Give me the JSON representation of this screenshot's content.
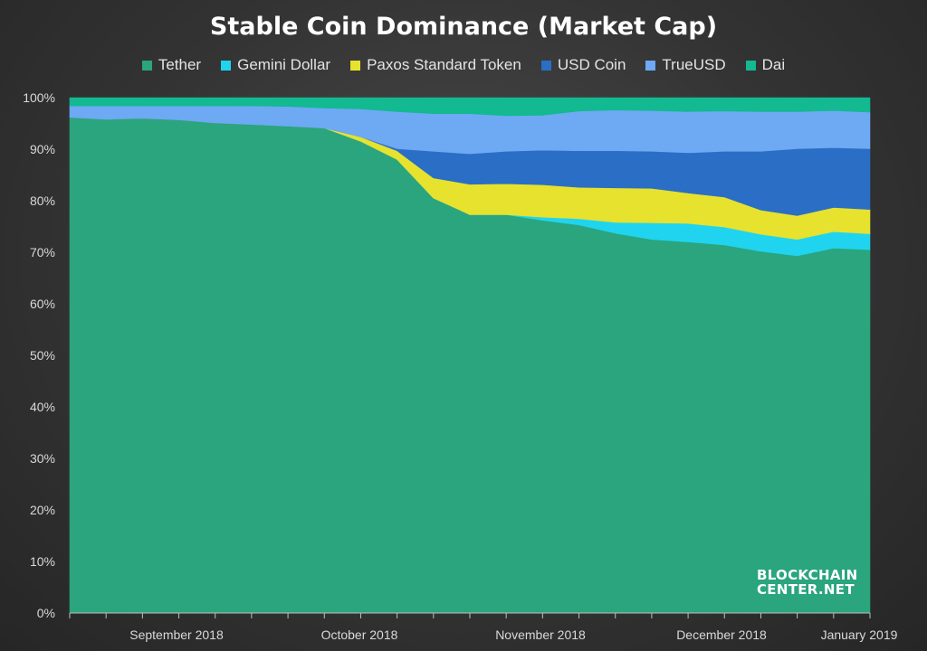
{
  "chart_data": {
    "type": "area",
    "stacked": true,
    "normalized_percent": true,
    "title": "Stable Coin Dominance (Market Cap)",
    "xlabel": "",
    "ylabel": "",
    "ylim": [
      0,
      100
    ],
    "yticks": [
      "0%",
      "10%",
      "20%",
      "30%",
      "40%",
      "50%",
      "60%",
      "70%",
      "80%",
      "90%",
      "100%"
    ],
    "xticks": [
      "September 2018",
      "October 2018",
      "November 2018",
      "December 2018",
      "January 2019"
    ],
    "legend_position": "top",
    "grid": false,
    "x": [
      "2018-08-19",
      "2018-08-26",
      "2018-09-02",
      "2018-09-09",
      "2018-09-16",
      "2018-09-23",
      "2018-09-30",
      "2018-10-07",
      "2018-10-14",
      "2018-10-21",
      "2018-10-28",
      "2018-11-04",
      "2018-11-11",
      "2018-11-18",
      "2018-11-25",
      "2018-12-02",
      "2018-12-09",
      "2018-12-16",
      "2018-12-23",
      "2018-12-30",
      "2019-01-06",
      "2019-01-13",
      "2019-01-20"
    ],
    "series": [
      {
        "name": "Tether",
        "color": "#2aa57d",
        "values": [
          96.2,
          95.8,
          96.0,
          95.7,
          95.1,
          94.8,
          94.5,
          94.1,
          91.5,
          88.0,
          80.5,
          77.3,
          77.3,
          76.2,
          75.3,
          73.7,
          72.5,
          72.0,
          71.4,
          70.2,
          69.3,
          70.8,
          70.5
        ]
      },
      {
        "name": "Gemini Dollar",
        "color": "#20d4f0",
        "values": [
          0,
          0,
          0,
          0,
          0,
          0,
          0,
          0,
          0,
          0,
          0,
          0,
          0,
          0.6,
          1.2,
          2.1,
          3.2,
          3.6,
          3.5,
          3.3,
          3.2,
          3.2,
          3.1
        ]
      },
      {
        "name": "Paxos Standard Token",
        "color": "#e6e22e",
        "values": [
          0,
          0,
          0,
          0,
          0,
          0,
          0,
          0,
          0.9,
          1.7,
          3.9,
          5.9,
          6.0,
          6.3,
          6.1,
          6.7,
          6.7,
          5.9,
          5.8,
          4.7,
          4.6,
          4.7,
          4.7
        ]
      },
      {
        "name": "USD Coin",
        "color": "#2a6fc5",
        "values": [
          0,
          0,
          0,
          0,
          0,
          0,
          0,
          0,
          0,
          0.4,
          5.2,
          5.9,
          6.3,
          6.7,
          7.1,
          7.2,
          7.2,
          7.8,
          8.9,
          11.4,
          13.0,
          11.6,
          11.8
        ]
      },
      {
        "name": "TrueUSD",
        "color": "#6ea9f4",
        "values": [
          2.2,
          2.6,
          2.4,
          2.7,
          3.3,
          3.6,
          3.8,
          3.9,
          5.4,
          7.2,
          7.3,
          7.8,
          6.9,
          6.8,
          7.7,
          7.9,
          7.9,
          8.0,
          7.8,
          7.7,
          7.2,
          7.2,
          7.1
        ]
      },
      {
        "name": "Dai",
        "color": "#13b991",
        "values": [
          1.6,
          1.6,
          1.6,
          1.6,
          1.6,
          1.6,
          1.7,
          2.0,
          2.2,
          2.7,
          3.1,
          3.1,
          3.5,
          3.4,
          2.6,
          2.4,
          2.5,
          2.7,
          2.6,
          2.7,
          2.7,
          2.5,
          2.8
        ]
      }
    ]
  },
  "watermark": {
    "line1": "BLOCKCHAIN",
    "line2": "CENTER.NET"
  }
}
